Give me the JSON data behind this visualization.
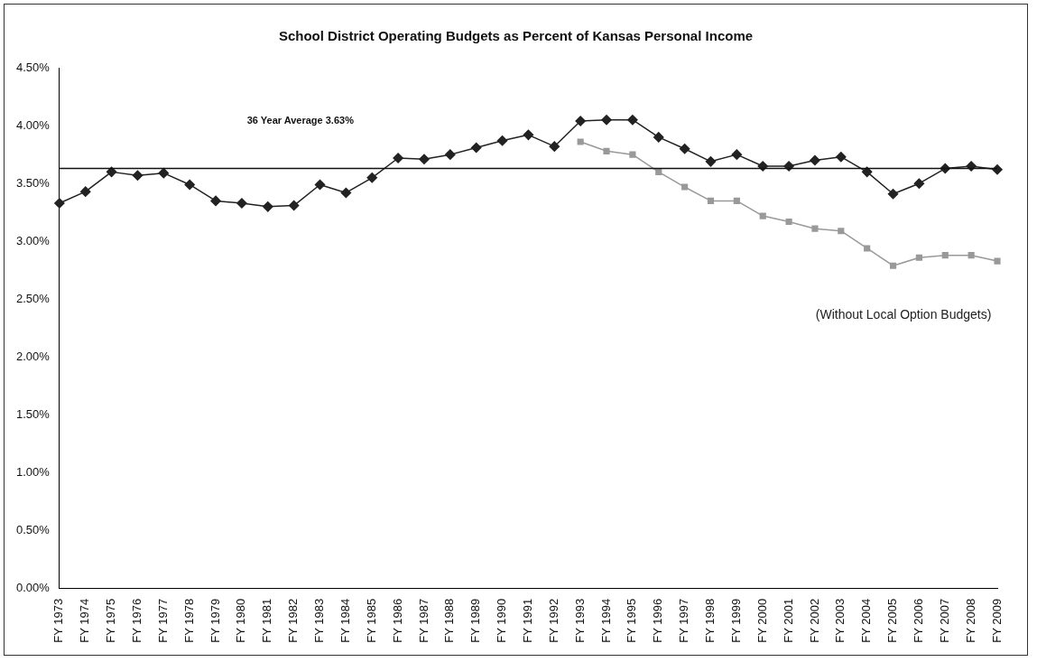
{
  "chart_data": {
    "type": "line",
    "title": "School District Operating Budgets as Percent of Kansas Personal Income",
    "categories": [
      "FY 1973",
      "FY 1974",
      "FY 1975",
      "FY 1976",
      "FY 1977",
      "FY 1978",
      "FY 1979",
      "FY 1980",
      "FY 1981",
      "FY 1982",
      "FY 1983",
      "FY 1984",
      "FY 1985",
      "FY 1986",
      "FY 1987",
      "FY 1988",
      "FY 1989",
      "FY 1990",
      "FY 1991",
      "FY 1992",
      "FY 1993",
      "FY 1994",
      "FY 1995",
      "FY 1996",
      "FY 1997",
      "FY 1998",
      "FY 1999",
      "FY 2000",
      "FY 2001",
      "FY 2002",
      "FY 2003",
      "FY 2004",
      "FY 2005",
      "FY 2006",
      "FY 2007",
      "FY 2008",
      "FY 2009"
    ],
    "series": [
      {
        "color": "#222222",
        "marker": "diamond",
        "values": [
          3.33,
          3.43,
          3.6,
          3.57,
          3.59,
          3.49,
          3.35,
          3.33,
          3.3,
          3.31,
          3.49,
          3.42,
          3.55,
          3.72,
          3.71,
          3.75,
          3.81,
          3.87,
          3.92,
          3.82,
          4.04,
          4.05,
          4.05,
          3.9,
          3.8,
          3.69,
          3.75,
          3.65,
          3.65,
          3.7,
          3.73,
          3.6,
          3.41,
          3.5,
          3.63,
          3.65,
          3.62
        ]
      },
      {
        "color": "#999999",
        "marker": "square",
        "values": [
          null,
          null,
          null,
          null,
          null,
          null,
          null,
          null,
          null,
          null,
          null,
          null,
          null,
          null,
          null,
          null,
          null,
          null,
          null,
          null,
          3.86,
          3.78,
          3.75,
          3.6,
          3.47,
          3.35,
          3.35,
          3.22,
          3.17,
          3.11,
          3.09,
          2.94,
          2.79,
          2.86,
          2.88,
          2.88,
          2.83
        ]
      }
    ],
    "ylim": [
      0,
      4.5
    ],
    "yticks": [
      {
        "value": 0,
        "label": "0.00%"
      },
      {
        "value": 0.5,
        "label": "0.50%"
      },
      {
        "value": 1,
        "label": "1.00%"
      },
      {
        "value": 1.5,
        "label": "1.50%"
      },
      {
        "value": 2,
        "label": "2.00%"
      },
      {
        "value": 2.5,
        "label": "2.50%"
      },
      {
        "value": 3,
        "label": "3.00%"
      },
      {
        "value": 3.5,
        "label": "3.50%"
      },
      {
        "value": 4,
        "label": "4.00%"
      },
      {
        "value": 4.5,
        "label": "4.50%"
      }
    ],
    "ref_lines": [
      {
        "axis": "y",
        "value": 3.63,
        "label": "36 Year Average 3.63%",
        "color": "#111111"
      }
    ],
    "annotations": [
      "(Without Local Option Budgets)"
    ],
    "grid": false,
    "legend": false,
    "line_style": "solid"
  }
}
